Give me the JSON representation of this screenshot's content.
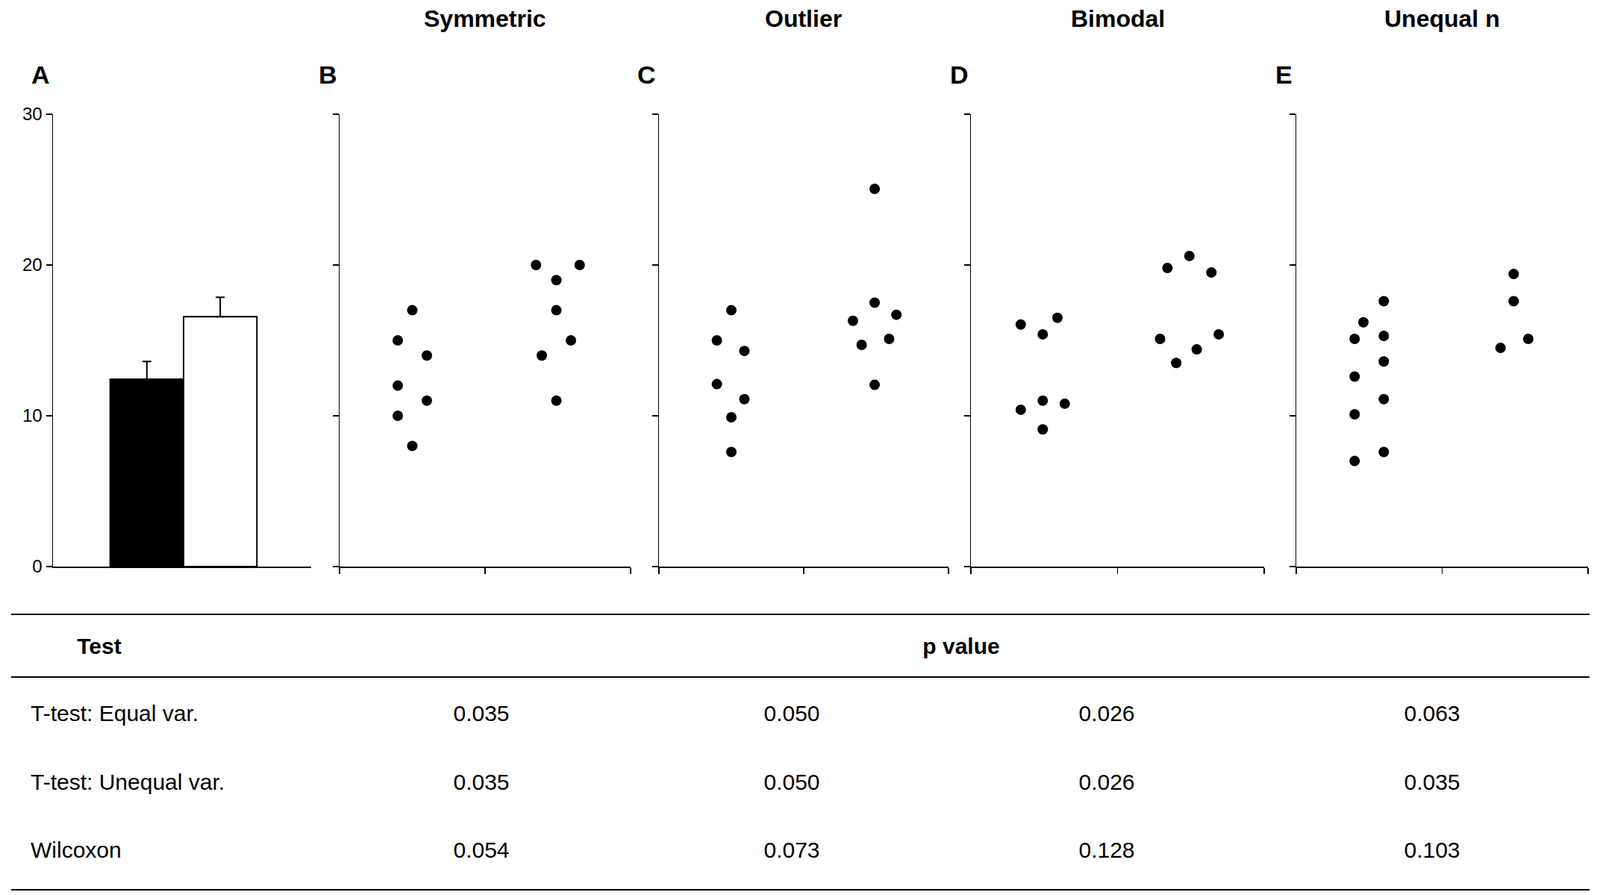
{
  "chart_data": [
    {
      "type": "bar",
      "panel": "A",
      "categories": [
        null,
        null
      ],
      "values": [
        12.43,
        16.57
      ],
      "errors": [
        1.17,
        1.29
      ],
      "colors": [
        "#000000",
        "#ffffff"
      ],
      "ylim": [
        0,
        30
      ],
      "yticks": [
        0,
        10,
        20,
        30
      ],
      "tick_labels": "y"
    },
    {
      "type": "scatter",
      "panel": "B",
      "title": "Symmetric",
      "x": [
        0.5,
        0.4,
        0.6,
        0.4,
        0.6,
        0.4,
        0.5,
        1.35,
        1.65,
        1.49,
        1.49,
        1.39,
        1.59,
        1.49
      ],
      "y": [
        17,
        15,
        14,
        12,
        11,
        10,
        8,
        20,
        20,
        19,
        17,
        14,
        15,
        11
      ],
      "xlim": [
        0,
        2
      ],
      "xticks": [
        0,
        1,
        2
      ],
      "ylim": [
        0,
        30
      ],
      "yticks": [
        0,
        10,
        20,
        30
      ],
      "tick_labels": false,
      "color": "#000000",
      "marker": "circle"
    },
    {
      "type": "scatter",
      "panel": "C",
      "title": "Outlier",
      "x": [
        0.5,
        0.4,
        0.59,
        0.4,
        0.59,
        0.5,
        0.5,
        1.49,
        1.49,
        1.34,
        1.64,
        1.4,
        1.59,
        1.49
      ],
      "y": [
        17,
        15,
        14.3,
        12.1,
        11.1,
        9.9,
        7.6,
        25.05,
        17.5,
        16.3,
        16.7,
        14.7,
        15.1,
        12.05
      ],
      "xlim": [
        0,
        2
      ],
      "xticks": [
        0,
        1,
        2
      ],
      "ylim": [
        0,
        30
      ],
      "yticks": [
        0,
        10,
        20,
        30
      ],
      "tick_labels": false,
      "color": "#000000",
      "marker": "circle"
    },
    {
      "type": "scatter",
      "panel": "D",
      "title": "Bimodal",
      "x": [
        0.34,
        0.59,
        0.49,
        0.34,
        0.49,
        0.64,
        0.49,
        1.34,
        1.49,
        1.64,
        1.29,
        1.69,
        1.54,
        1.4
      ],
      "y": [
        16.05,
        16.5,
        15.4,
        10.4,
        11.0,
        10.8,
        9.1,
        19.8,
        20.6,
        19.5,
        15.1,
        15.4,
        14.4,
        13.5
      ],
      "xlim": [
        0,
        2
      ],
      "xticks": [
        0,
        1,
        2
      ],
      "ylim": [
        0,
        30
      ],
      "yticks": [
        0,
        10,
        20,
        30
      ],
      "tick_labels": false,
      "color": "#000000",
      "marker": "circle"
    },
    {
      "type": "scatter",
      "panel": "E",
      "title": "Unequal n",
      "x": [
        0.6,
        0.46,
        0.4,
        0.6,
        0.6,
        0.4,
        0.6,
        0.4,
        0.6,
        0.4,
        1.49,
        1.49,
        1.4,
        1.59
      ],
      "y": [
        17.6,
        16.2,
        15.1,
        15.3,
        13.6,
        12.6,
        11.1,
        10.1,
        7.6,
        7.0,
        19.4,
        17.6,
        14.5,
        15.1
      ],
      "xlim": [
        0,
        2
      ],
      "xticks": [
        0,
        1,
        2
      ],
      "ylim": [
        0,
        30
      ],
      "yticks": [
        0,
        10,
        20,
        30
      ],
      "tick_labels": false,
      "color": "#000000",
      "marker": "circle"
    }
  ],
  "table": {
    "header": [
      "Test",
      "p value"
    ],
    "rows": [
      [
        "T-test: Equal var.",
        "0.035",
        "0.050",
        "0.026",
        "0.063"
      ],
      [
        "T-test: Unequal var.",
        "0.035",
        "0.050",
        "0.026",
        "0.035"
      ],
      [
        "Wilcoxon",
        "0.054",
        "0.073",
        "0.128",
        "0.103"
      ]
    ]
  }
}
